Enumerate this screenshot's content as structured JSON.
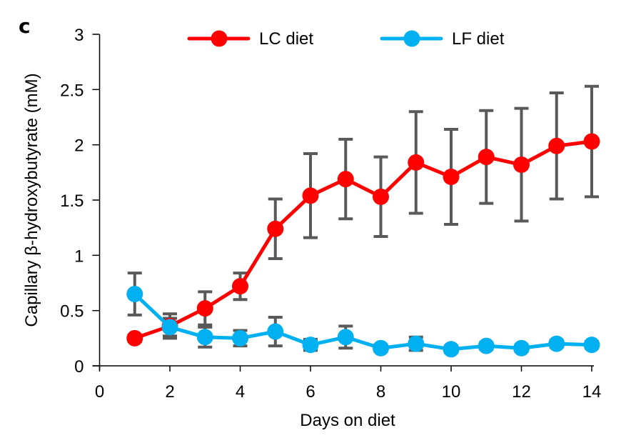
{
  "panel_label": "c",
  "chart_data": {
    "type": "line",
    "title": "",
    "xlabel": "Days on diet",
    "ylabel": "Capillary β-hydroxybutyrate (mM)",
    "xlim": [
      0,
      14
    ],
    "ylim": [
      0,
      3
    ],
    "xticks": [
      0,
      2,
      4,
      6,
      8,
      10,
      12,
      14
    ],
    "xtick_labels": [
      "0",
      "2",
      "4",
      "6",
      "8",
      "10",
      "12",
      "14"
    ],
    "yticks": [
      0,
      0.5,
      1,
      1.5,
      2,
      2.5,
      3
    ],
    "ytick_labels": [
      "0",
      "0.5",
      "1",
      "1.5",
      "2",
      "2.5",
      "3"
    ],
    "grid": false,
    "legend_position": "top",
    "x": [
      1,
      2,
      3,
      4,
      5,
      6,
      7,
      8,
      9,
      10,
      11,
      12,
      13,
      14
    ],
    "series": [
      {
        "name": "LC diet",
        "color": "#ff0000",
        "values": [
          0.25,
          0.36,
          0.52,
          0.72,
          1.24,
          1.54,
          1.69,
          1.53,
          1.84,
          1.71,
          1.89,
          1.82,
          1.99,
          2.03
        ],
        "error": [
          0.03,
          0.11,
          0.15,
          0.12,
          0.27,
          0.38,
          0.36,
          0.36,
          0.46,
          0.43,
          0.42,
          0.51,
          0.48,
          0.5
        ]
      },
      {
        "name": "LF diet",
        "color": "#00b0f0",
        "values": [
          0.65,
          0.35,
          0.26,
          0.25,
          0.31,
          0.19,
          0.26,
          0.16,
          0.2,
          0.15,
          0.18,
          0.16,
          0.2,
          0.19
        ],
        "error": [
          0.19,
          0.08,
          0.09,
          0.07,
          0.13,
          0.05,
          0.1,
          0.03,
          0.06,
          0.03,
          0.03,
          0.03,
          0.03,
          0.03
        ]
      }
    ],
    "error_bar_color": "#595959"
  }
}
